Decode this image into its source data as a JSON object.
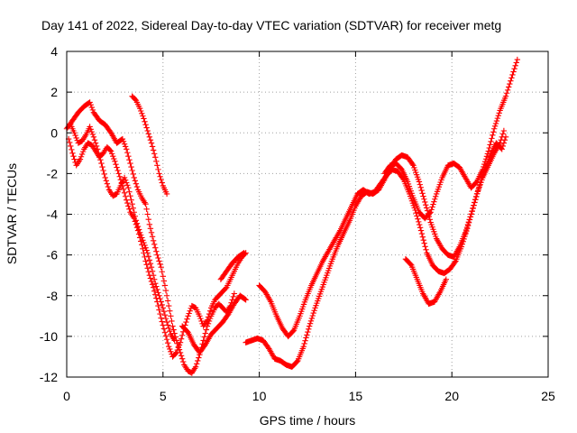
{
  "chart_data": {
    "type": "scatter",
    "title": "Day 141 of 2022, Sidereal Day-to-day VTEC variation (SDTVAR) for receiver metg",
    "xlabel": "GPS time / hours",
    "ylabel": "SDTVAR / TECUs",
    "xlim": [
      0,
      25
    ],
    "ylim": [
      -12,
      4
    ],
    "xticks": [
      "0",
      "5",
      "10",
      "15",
      "20",
      "25"
    ],
    "yticks": [
      "4",
      "2",
      "0",
      "-2",
      "-4",
      "-6",
      "-8",
      "-10",
      "-12"
    ],
    "grid": true,
    "marker": "+",
    "color": "#ff0000",
    "series": [
      {
        "segments": [
          [
            [
              0.0,
              0.2
            ],
            [
              0.3,
              0.6
            ],
            [
              0.6,
              1.0
            ],
            [
              0.9,
              1.3
            ],
            [
              1.2,
              1.5
            ],
            [
              1.4,
              1.0
            ],
            [
              1.7,
              0.6
            ],
            [
              2.0,
              0.4
            ],
            [
              2.3,
              0.0
            ],
            [
              2.6,
              -0.5
            ],
            [
              2.9,
              -0.3
            ],
            [
              3.1,
              -0.8
            ],
            [
              3.3,
              -1.5
            ],
            [
              3.5,
              -2.2
            ],
            [
              3.7,
              -2.8
            ],
            [
              3.9,
              -3.2
            ],
            [
              4.1,
              -3.5
            ],
            [
              4.3,
              -4.5
            ],
            [
              4.5,
              -5.3
            ],
            [
              4.7,
              -6.0
            ],
            [
              4.9,
              -6.6
            ],
            [
              5.1,
              -7.5
            ],
            [
              5.3,
              -8.5
            ],
            [
              5.5,
              -9.5
            ],
            [
              5.7,
              -10.2
            ],
            [
              5.9,
              -10.8
            ],
            [
              6.1,
              -11.4
            ],
            [
              6.3,
              -11.7
            ],
            [
              6.5,
              -11.8
            ],
            [
              6.7,
              -11.5
            ],
            [
              6.9,
              -10.9
            ],
            [
              7.1,
              -10.2
            ],
            [
              7.3,
              -9.5
            ],
            [
              7.5,
              -9.0
            ],
            [
              7.7,
              -8.6
            ],
            [
              7.9,
              -8.4
            ],
            [
              8.1,
              -8.6
            ],
            [
              8.3,
              -8.8
            ],
            [
              8.5,
              -8.5
            ],
            [
              8.7,
              -7.9
            ]
          ],
          [
            [
              3.4,
              1.8
            ],
            [
              3.6,
              1.6
            ],
            [
              3.8,
              1.2
            ],
            [
              4.0,
              0.7
            ],
            [
              4.2,
              0.1
            ],
            [
              4.4,
              -0.5
            ],
            [
              4.6,
              -1.2
            ],
            [
              4.8,
              -2.0
            ],
            [
              5.0,
              -2.6
            ],
            [
              5.2,
              -3.0
            ]
          ],
          [
            [
              9.3,
              -10.3
            ],
            [
              9.6,
              -10.2
            ],
            [
              9.9,
              -10.1
            ],
            [
              10.2,
              -10.2
            ],
            [
              10.5,
              -10.6
            ],
            [
              10.8,
              -11.1
            ],
            [
              11.1,
              -11.2
            ],
            [
              11.4,
              -11.4
            ],
            [
              11.7,
              -11.5
            ],
            [
              12.0,
              -11.2
            ],
            [
              12.3,
              -10.5
            ],
            [
              12.6,
              -9.5
            ],
            [
              12.9,
              -8.6
            ],
            [
              13.2,
              -7.8
            ],
            [
              13.5,
              -7.0
            ],
            [
              13.8,
              -6.2
            ],
            [
              14.1,
              -5.5
            ],
            [
              14.4,
              -4.9
            ],
            [
              14.7,
              -4.3
            ],
            [
              15.0,
              -3.6
            ],
            [
              15.3,
              -3.1
            ],
            [
              15.6,
              -2.9
            ],
            [
              15.9,
              -3.0
            ],
            [
              16.2,
              -2.8
            ],
            [
              16.5,
              -2.3
            ],
            [
              16.8,
              -1.7
            ],
            [
              17.1,
              -1.3
            ],
            [
              17.4,
              -1.1
            ],
            [
              17.7,
              -1.2
            ],
            [
              18.0,
              -1.6
            ],
            [
              18.3,
              -2.4
            ],
            [
              18.6,
              -3.4
            ],
            [
              18.9,
              -4.4
            ],
            [
              19.2,
              -5.2
            ],
            [
              19.5,
              -5.7
            ],
            [
              19.8,
              -6.0
            ],
            [
              20.1,
              -6.1
            ],
            [
              20.4,
              -5.6
            ],
            [
              20.7,
              -4.9
            ],
            [
              21.0,
              -4.0
            ],
            [
              21.3,
              -3.0
            ],
            [
              21.6,
              -2.2
            ],
            [
              21.9,
              -1.6
            ],
            [
              22.2,
              -1.0
            ],
            [
              22.5,
              -0.5
            ],
            [
              22.7,
              0.1
            ]
          ]
        ]
      },
      {
        "segments": [
          [
            [
              0.1,
              -0.3
            ],
            [
              0.3,
              -1.0
            ],
            [
              0.5,
              -1.6
            ],
            [
              0.7,
              -1.3
            ],
            [
              0.9,
              -0.8
            ],
            [
              1.1,
              -0.5
            ],
            [
              1.3,
              -0.6
            ],
            [
              1.5,
              -0.9
            ],
            [
              1.7,
              -1.2
            ],
            [
              1.9,
              -1.0
            ],
            [
              2.1,
              -0.7
            ],
            [
              2.3,
              -0.9
            ],
            [
              2.5,
              -1.4
            ],
            [
              2.7,
              -2.0
            ],
            [
              2.9,
              -2.6
            ],
            [
              3.1,
              -3.3
            ],
            [
              3.3,
              -3.9
            ],
            [
              3.5,
              -4.2
            ],
            [
              3.7,
              -4.8
            ],
            [
              3.9,
              -5.5
            ],
            [
              4.1,
              -6.3
            ],
            [
              4.3,
              -7.0
            ],
            [
              4.5,
              -7.6
            ],
            [
              4.7,
              -8.3
            ],
            [
              4.9,
              -9.1
            ],
            [
              5.1,
              -9.8
            ],
            [
              5.3,
              -10.5
            ],
            [
              5.5,
              -11.0
            ],
            [
              5.7,
              -10.8
            ],
            [
              5.9,
              -10.3
            ],
            [
              6.1,
              -9.6
            ],
            [
              6.3,
              -9.0
            ],
            [
              6.5,
              -8.5
            ],
            [
              6.7,
              -8.6
            ],
            [
              6.9,
              -9.0
            ],
            [
              7.1,
              -9.5
            ],
            [
              7.3,
              -9.2
            ],
            [
              7.5,
              -8.6
            ],
            [
              7.7,
              -8.2
            ],
            [
              7.9,
              -8.0
            ],
            [
              8.1,
              -7.8
            ],
            [
              8.3,
              -7.6
            ],
            [
              8.5,
              -7.2
            ],
            [
              8.7,
              -6.8
            ],
            [
              8.9,
              -6.4
            ],
            [
              9.1,
              -6.1
            ],
            [
              9.3,
              -5.9
            ]
          ],
          [
            [
              10.0,
              -7.5
            ],
            [
              10.3,
              -7.8
            ],
            [
              10.6,
              -8.3
            ],
            [
              10.9,
              -9.0
            ],
            [
              11.2,
              -9.6
            ],
            [
              11.5,
              -10.0
            ],
            [
              11.8,
              -9.7
            ],
            [
              12.1,
              -9.0
            ],
            [
              12.4,
              -8.2
            ],
            [
              12.7,
              -7.5
            ],
            [
              13.0,
              -6.9
            ],
            [
              13.3,
              -6.3
            ],
            [
              13.6,
              -5.8
            ],
            [
              13.9,
              -5.3
            ],
            [
              14.2,
              -4.8
            ],
            [
              14.5,
              -4.2
            ],
            [
              14.8,
              -3.6
            ],
            [
              15.1,
              -3.0
            ],
            [
              15.4,
              -2.8
            ],
            [
              15.7,
              -3.0
            ],
            [
              16.0,
              -2.9
            ],
            [
              16.3,
              -2.5
            ],
            [
              16.6,
              -2.1
            ],
            [
              16.9,
              -1.8
            ],
            [
              17.2,
              -1.9
            ],
            [
              17.5,
              -2.3
            ],
            [
              17.8,
              -3.0
            ],
            [
              18.1,
              -3.8
            ],
            [
              18.4,
              -4.8
            ],
            [
              18.7,
              -5.9
            ],
            [
              19.0,
              -6.5
            ],
            [
              19.3,
              -6.8
            ],
            [
              19.6,
              -6.9
            ],
            [
              19.9,
              -6.7
            ],
            [
              20.2,
              -6.3
            ],
            [
              20.5,
              -5.6
            ],
            [
              20.8,
              -4.7
            ],
            [
              21.1,
              -3.7
            ],
            [
              21.4,
              -2.7
            ],
            [
              21.7,
              -1.8
            ],
            [
              22.0,
              -1.1
            ],
            [
              22.3,
              -0.5
            ],
            [
              22.6,
              -0.8
            ],
            [
              22.8,
              -0.2
            ]
          ]
        ]
      },
      {
        "segments": [
          [
            [
              0.2,
              0.4
            ],
            [
              0.4,
              0.0
            ],
            [
              0.6,
              -0.5
            ],
            [
              0.8,
              -0.4
            ],
            [
              1.0,
              -0.1
            ],
            [
              1.2,
              0.3
            ],
            [
              1.4,
              -0.2
            ],
            [
              1.6,
              -0.8
            ],
            [
              1.8,
              -1.5
            ],
            [
              2.0,
              -2.2
            ],
            [
              2.2,
              -2.8
            ],
            [
              2.4,
              -3.1
            ],
            [
              2.6,
              -3.0
            ],
            [
              2.8,
              -2.6
            ],
            [
              3.0,
              -2.2
            ],
            [
              3.2,
              -2.7
            ],
            [
              3.4,
              -3.5
            ],
            [
              3.6,
              -4.3
            ],
            [
              3.8,
              -4.9
            ],
            [
              4.0,
              -5.4
            ],
            [
              4.2,
              -5.9
            ],
            [
              4.4,
              -6.6
            ],
            [
              4.6,
              -7.4
            ],
            [
              4.8,
              -8.0
            ],
            [
              5.0,
              -8.6
            ],
            [
              5.2,
              -9.3
            ],
            [
              5.4,
              -9.9
            ],
            [
              5.6,
              -10.2
            ]
          ],
          [
            [
              6.0,
              -9.5
            ],
            [
              6.3,
              -9.8
            ],
            [
              6.6,
              -10.4
            ],
            [
              6.9,
              -10.8
            ],
            [
              7.2,
              -10.4
            ],
            [
              7.5,
              -9.9
            ],
            [
              7.8,
              -9.6
            ],
            [
              8.1,
              -9.3
            ],
            [
              8.4,
              -8.9
            ],
            [
              8.7,
              -8.4
            ],
            [
              9.0,
              -8.0
            ],
            [
              9.3,
              -8.2
            ]
          ],
          [
            [
              8.0,
              -7.2
            ],
            [
              8.3,
              -6.8
            ],
            [
              8.6,
              -6.4
            ],
            [
              8.9,
              -6.1
            ],
            [
              9.2,
              -5.9
            ]
          ],
          [
            [
              16.5,
              -2.0
            ],
            [
              16.8,
              -1.6
            ],
            [
              17.1,
              -1.5
            ],
            [
              17.4,
              -1.8
            ],
            [
              17.7,
              -2.4
            ],
            [
              18.0,
              -3.2
            ],
            [
              18.3,
              -3.9
            ],
            [
              18.6,
              -4.2
            ],
            [
              18.9,
              -3.9
            ],
            [
              19.2,
              -3.0
            ],
            [
              19.5,
              -2.2
            ],
            [
              19.8,
              -1.6
            ],
            [
              20.1,
              -1.5
            ],
            [
              20.4,
              -1.7
            ],
            [
              20.7,
              -2.2
            ],
            [
              21.0,
              -2.7
            ],
            [
              21.3,
              -2.4
            ],
            [
              21.6,
              -1.8
            ],
            [
              21.9,
              -0.9
            ],
            [
              22.2,
              0.2
            ],
            [
              22.5,
              1.1
            ],
            [
              22.8,
              1.8
            ],
            [
              23.0,
              2.4
            ],
            [
              23.2,
              3.0
            ],
            [
              23.4,
              3.6
            ]
          ],
          [
            [
              17.6,
              -6.2
            ],
            [
              17.9,
              -6.5
            ],
            [
              18.2,
              -7.2
            ],
            [
              18.5,
              -7.9
            ],
            [
              18.8,
              -8.4
            ],
            [
              19.1,
              -8.3
            ],
            [
              19.4,
              -7.8
            ],
            [
              19.7,
              -7.2
            ]
          ]
        ]
      }
    ]
  }
}
